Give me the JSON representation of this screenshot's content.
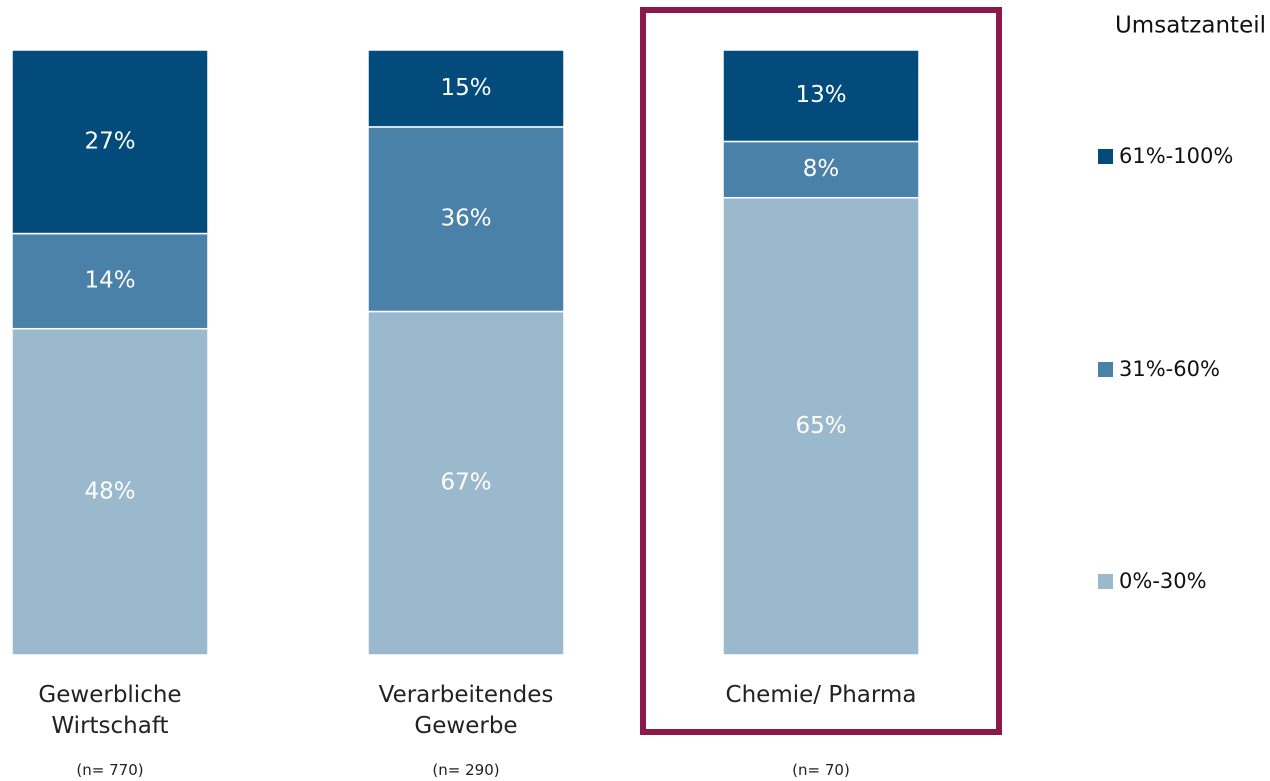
{
  "chart_data": {
    "type": "stacked_bar",
    "categories": [
      "Gewerbliche Wirtschaft",
      "Verarbeitendes Gewerbe",
      "Chemie/ Pharma"
    ],
    "sample_sizes": [
      "(n= 770)",
      "(n= 290)",
      "(n= 70)"
    ],
    "legend_title": "Umsatzanteil",
    "series": [
      {
        "name": "0%-30%",
        "color": "#9ab9cc",
        "values": [
          48,
          67,
          65
        ],
        "value_labels": [
          "48%",
          "67%",
          "65%"
        ]
      },
      {
        "name": "31%-60%",
        "color": "#4a81a8",
        "values": [
          14,
          36,
          8
        ],
        "value_labels": [
          "14%",
          "36%",
          "8%"
        ]
      },
      {
        "name": "61%-100%",
        "color": "#024b7a",
        "values": [
          27,
          15,
          13
        ],
        "value_labels": [
          "27%",
          "15%",
          "13%"
        ]
      }
    ],
    "highlight": 2,
    "highlight_color": "#8b1a4a"
  }
}
